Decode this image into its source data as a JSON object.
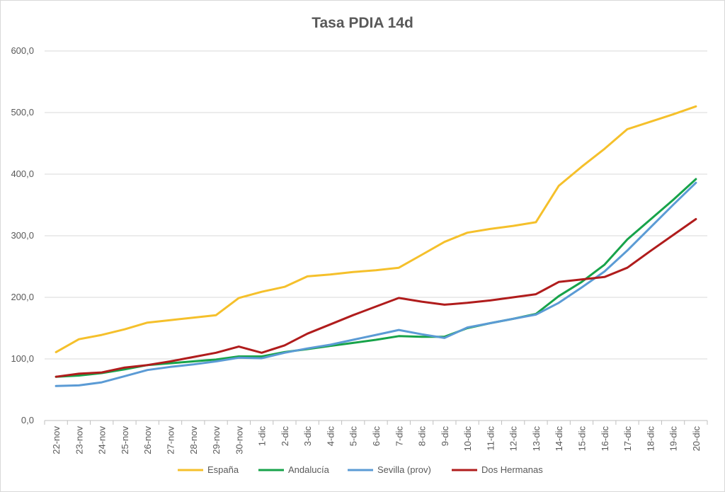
{
  "chart_data": {
    "type": "line",
    "title": "Tasa PDIA 14d",
    "xlabel": "",
    "ylabel": "",
    "ylim": [
      0,
      600
    ],
    "y_ticks": [
      "0,0",
      "100,0",
      "200,0",
      "300,0",
      "400,0",
      "500,0",
      "600,0"
    ],
    "grid": true,
    "legend_position": "bottom",
    "categories": [
      "22-nov",
      "23-nov",
      "24-nov",
      "25-nov",
      "26-nov",
      "27-nov",
      "28-nov",
      "29-nov",
      "30-nov",
      "1-dic",
      "2-dic",
      "3-dic",
      "4-dic",
      "5-dic",
      "6-dic",
      "7-dic",
      "8-dic",
      "9-dic",
      "10-dic",
      "11-dic",
      "12-dic",
      "13-dic",
      "14-dic",
      "15-dic",
      "16-dic",
      "17-dic",
      "18-dic",
      "19-dic",
      "20-dic"
    ],
    "series": [
      {
        "name": "España",
        "color": "#f5c02b",
        "values": [
          111,
          132,
          139,
          148,
          159,
          163,
          167,
          171,
          199,
          209,
          217,
          234,
          237,
          241,
          244,
          248,
          269,
          290,
          305,
          311,
          316,
          322,
          381,
          412,
          441,
          473,
          485,
          497,
          510
        ]
      },
      {
        "name": "Andalucía",
        "color": "#17a34a",
        "values": [
          71,
          73,
          77,
          83,
          90,
          93,
          96,
          99,
          104,
          104,
          111,
          116,
          121,
          126,
          131,
          137,
          136,
          136,
          150,
          158,
          165,
          173,
          202,
          225,
          253,
          294,
          326,
          358,
          392
        ]
      },
      {
        "name": "Sevilla (prov)",
        "color": "#5b9bd5",
        "values": [
          56,
          57,
          62,
          72,
          82,
          87,
          91,
          96,
          102,
          101,
          110,
          117,
          123,
          131,
          139,
          147,
          140,
          134,
          151,
          158,
          165,
          172,
          191,
          216,
          242,
          276,
          313,
          350,
          386
        ]
      },
      {
        "name": "Dos Hermanas",
        "color": "#b01c1c",
        "values": [
          71,
          76,
          78,
          86,
          90,
          96,
          103,
          110,
          120,
          110,
          122,
          141,
          156,
          171,
          185,
          199,
          193,
          188,
          191,
          195,
          200,
          205,
          225,
          229,
          233,
          248,
          275,
          301,
          327
        ]
      }
    ]
  }
}
